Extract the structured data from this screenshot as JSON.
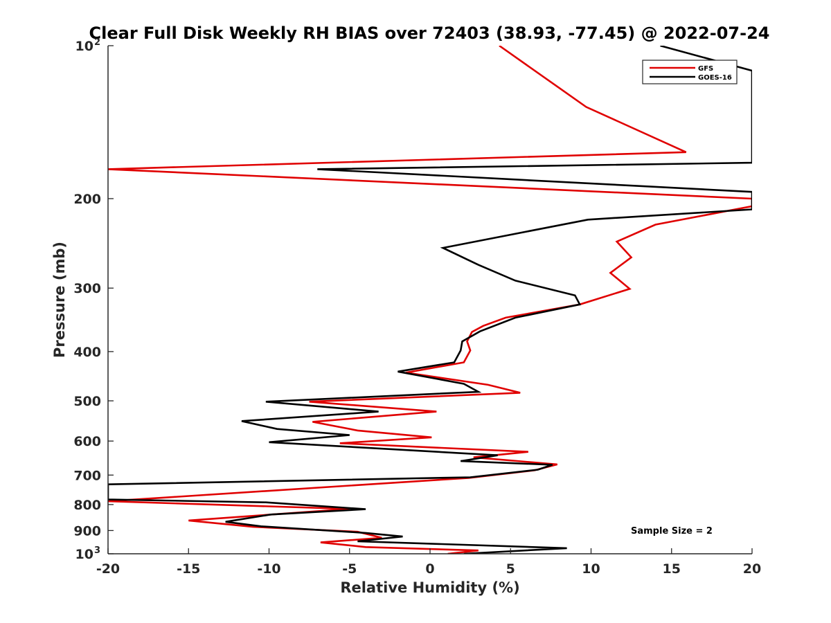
{
  "chart_data": {
    "type": "line",
    "title": "Clear Full Disk Weekly RH BIAS over 72403 (38.93, -77.45) @ 2022-07-24",
    "xlabel": "Relative Humidity (%)",
    "ylabel": "Pressure (mb)",
    "xlim": [
      -20,
      20
    ],
    "ylim": [
      100,
      1000
    ],
    "y_scale": "log",
    "y_reversed": true,
    "grid": false,
    "legend_position": "top-right",
    "annotation": "Sample Size = 2",
    "x_ticks": [
      "-20",
      "-15",
      "-10",
      "-5",
      "0",
      "5",
      "10",
      "15",
      "20"
    ],
    "y_ticks": [
      {
        "value": 100,
        "label": "10",
        "sup": "2"
      },
      {
        "value": 200,
        "label": "200",
        "sup": ""
      },
      {
        "value": 300,
        "label": "300",
        "sup": ""
      },
      {
        "value": 400,
        "label": "400",
        "sup": ""
      },
      {
        "value": 500,
        "label": "500",
        "sup": ""
      },
      {
        "value": 600,
        "label": "600",
        "sup": ""
      },
      {
        "value": 700,
        "label": "700",
        "sup": ""
      },
      {
        "value": 800,
        "label": "800",
        "sup": ""
      },
      {
        "value": 900,
        "label": "900",
        "sup": ""
      },
      {
        "value": 1000,
        "label": "10",
        "sup": "3"
      }
    ],
    "series": [
      {
        "name": "GFS",
        "color": "#e00000",
        "points": [
          [
            4.3,
            100
          ],
          [
            9.7,
            132
          ],
          [
            15.9,
            162
          ],
          [
            -20,
            175
          ],
          [
            20,
            200
          ],
          [
            20,
            207
          ],
          [
            14.0,
            225
          ],
          [
            11.6,
            243
          ],
          [
            12.5,
            261
          ],
          [
            11.2,
            280
          ],
          [
            12.4,
            301
          ],
          [
            9.3,
            323
          ],
          [
            4.7,
            343
          ],
          [
            3.3,
            356
          ],
          [
            2.6,
            366
          ],
          [
            2.3,
            382
          ],
          [
            2.5,
            398
          ],
          [
            2.1,
            420
          ],
          [
            -1.5,
            440
          ],
          [
            3.6,
            465
          ],
          [
            5.6,
            482
          ],
          [
            -7.5,
            502
          ],
          [
            0.4,
            525
          ],
          [
            -7.3,
            550
          ],
          [
            -4.5,
            572
          ],
          [
            0.1,
            590
          ],
          [
            -5.6,
            606
          ],
          [
            6.1,
            630
          ],
          [
            2.7,
            646
          ],
          [
            7.9,
            667
          ],
          [
            6.5,
            685
          ],
          [
            2.4,
            709
          ],
          [
            -20,
            788
          ],
          [
            -5.0,
            816
          ],
          [
            -15.0,
            860
          ],
          [
            -11.0,
            885
          ],
          [
            -4.5,
            905
          ],
          [
            -3.0,
            930
          ],
          [
            -6.8,
            950
          ],
          [
            -4.0,
            970
          ],
          [
            3.0,
            985
          ],
          [
            1.1,
            1000
          ]
        ]
      },
      {
        "name": "GOES-16",
        "color": "#000000",
        "points": [
          [
            14.3,
            100
          ],
          [
            20,
            112
          ],
          [
            20,
            170
          ],
          [
            -7.0,
            175
          ],
          [
            20,
            194
          ],
          [
            20,
            210
          ],
          [
            9.8,
            220
          ],
          [
            0.8,
            250
          ],
          [
            3.0,
            270
          ],
          [
            5.3,
            290
          ],
          [
            9.0,
            310
          ],
          [
            9.3,
            323
          ],
          [
            5.3,
            343
          ],
          [
            3.1,
            365
          ],
          [
            2.0,
            382
          ],
          [
            1.9,
            398
          ],
          [
            1.5,
            420
          ],
          [
            -2.0,
            438
          ],
          [
            2.1,
            463
          ],
          [
            3.0,
            480
          ],
          [
            -10.2,
            502
          ],
          [
            -3.2,
            525
          ],
          [
            -11.7,
            548
          ],
          [
            -9.5,
            568
          ],
          [
            -5.0,
            584
          ],
          [
            -10.0,
            603
          ],
          [
            4.2,
            640
          ],
          [
            1.9,
            657
          ],
          [
            7.6,
            668
          ],
          [
            6.7,
            683
          ],
          [
            2.5,
            707
          ],
          [
            -20,
            730
          ],
          [
            -20,
            782
          ],
          [
            -10.2,
            792
          ],
          [
            -4.0,
            817
          ],
          [
            -9.9,
            837
          ],
          [
            -12.7,
            865
          ],
          [
            -10.5,
            883
          ],
          [
            -4.0,
            910
          ],
          [
            -1.7,
            925
          ],
          [
            -4.5,
            945
          ],
          [
            8.5,
            975
          ],
          [
            2.1,
            1000
          ]
        ]
      }
    ]
  }
}
